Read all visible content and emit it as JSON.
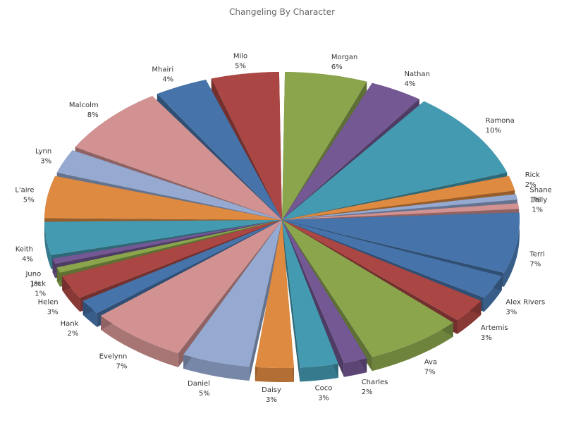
{
  "chart_data": {
    "type": "pie",
    "title": "Changeling By Character",
    "slices": [
      {
        "label": "Morgan",
        "value": 6,
        "display": "6%",
        "color": "#8aa54c"
      },
      {
        "label": "Nathan",
        "value": 4,
        "display": "4%",
        "color": "#735893"
      },
      {
        "label": "Ramona",
        "value": 10,
        "display": "10%",
        "color": "#449ab0"
      },
      {
        "label": "Rick",
        "value": 2,
        "display": "2%",
        "color": "#de8a41"
      },
      {
        "label": "Shane",
        "value": 1,
        "display": "1%",
        "color": "#95a9d1"
      },
      {
        "label": "Tally",
        "value": 1,
        "display": "1%",
        "color": "#d29292"
      },
      {
        "label": "Terri",
        "value": 7,
        "display": "7%",
        "color": "#4674aa"
      },
      {
        "label": "Alex Rivers",
        "value": 3,
        "display": "3%",
        "color": "#4674aa"
      },
      {
        "label": "Artemis",
        "value": 3,
        "display": "3%",
        "color": "#aa4744"
      },
      {
        "label": "Ava",
        "value": 7,
        "display": "7%",
        "color": "#8aa54c"
      },
      {
        "label": "Charles",
        "value": 2,
        "display": "2%",
        "color": "#735893"
      },
      {
        "label": "Coco",
        "value": 3,
        "display": "3%",
        "color": "#449ab0"
      },
      {
        "label": "Daisy",
        "value": 3,
        "display": "3%",
        "color": "#de8a41"
      },
      {
        "label": "Daniel",
        "value": 5,
        "display": "5%",
        "color": "#95a9d1"
      },
      {
        "label": "Evelynn",
        "value": 7,
        "display": "7%",
        "color": "#d29292"
      },
      {
        "label": "Hank",
        "value": 2,
        "display": "2%",
        "color": "#4674aa"
      },
      {
        "label": "Helen",
        "value": 3,
        "display": "3%",
        "color": "#aa4744"
      },
      {
        "label": "Jack",
        "value": 1,
        "display": "1%",
        "color": "#8aa54c"
      },
      {
        "label": "Juno",
        "value": 1,
        "display": "1%",
        "color": "#735893"
      },
      {
        "label": "Keith",
        "value": 4,
        "display": "4%",
        "color": "#449ab0"
      },
      {
        "label": "L'aire",
        "value": 5,
        "display": "5%",
        "color": "#de8a41"
      },
      {
        "label": "Lynn",
        "value": 3,
        "display": "3%",
        "color": "#95a9d1"
      },
      {
        "label": "Malcolm",
        "value": 8,
        "display": "8%",
        "color": "#d29292"
      },
      {
        "label": "Mhairi",
        "value": 4,
        "display": "4%",
        "color": "#4674aa"
      },
      {
        "label": "Milo",
        "value": 5,
        "display": "5%",
        "color": "#aa4744"
      }
    ]
  }
}
